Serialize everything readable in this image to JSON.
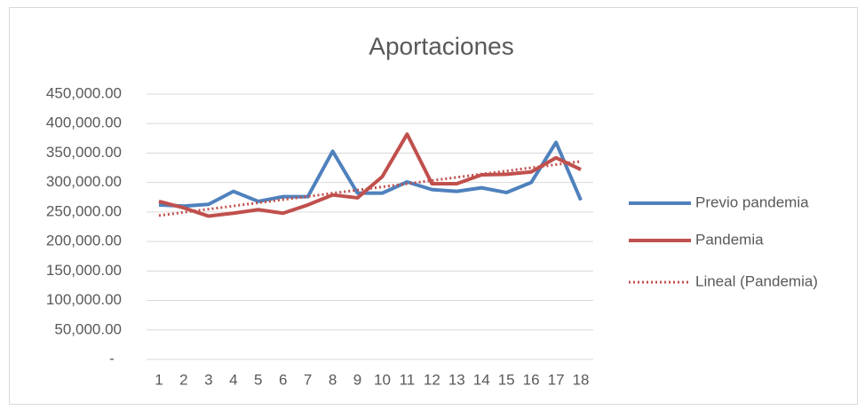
{
  "chart_data": {
    "type": "line",
    "title": "Aportaciones",
    "categories": [
      "1",
      "2",
      "3",
      "4",
      "5",
      "6",
      "7",
      "8",
      "9",
      "10",
      "11",
      "12",
      "13",
      "14",
      "15",
      "16",
      "17",
      "18"
    ],
    "series": [
      {
        "name": "Previo pandemia",
        "color": "#4f81bd",
        "line_style": "solid",
        "values": [
          262000,
          260000,
          263000,
          285000,
          268000,
          276000,
          276000,
          353000,
          282000,
          282000,
          301000,
          288000,
          285000,
          291000,
          283000,
          300000,
          368000,
          270000
        ]
      },
      {
        "name": "Pandemia",
        "color": "#c0504d",
        "line_style": "solid",
        "values": [
          268000,
          257000,
          243000,
          248000,
          254000,
          248000,
          262000,
          279000,
          274000,
          310000,
          382000,
          298000,
          298000,
          313000,
          314000,
          318000,
          342000,
          322000
        ]
      },
      {
        "name": "Lineal (Pandemia)",
        "color": "#c0504d",
        "line_style": "dotted",
        "values": [
          244000,
          249400,
          254800,
          260200,
          265600,
          271000,
          276400,
          281800,
          287200,
          292600,
          298000,
          303400,
          308800,
          314200,
          319600,
          325000,
          330400,
          335800
        ]
      }
    ],
    "ylim": [
      0,
      450000
    ],
    "yticks": [
      {
        "value": 0,
        "label": "-"
      },
      {
        "value": 50000,
        "label": "50,000.00"
      },
      {
        "value": 100000,
        "label": "100,000.00"
      },
      {
        "value": 150000,
        "label": "150,000.00"
      },
      {
        "value": 200000,
        "label": "200,000.00"
      },
      {
        "value": 250000,
        "label": "250,000.00"
      },
      {
        "value": 300000,
        "label": "300,000.00"
      },
      {
        "value": 350000,
        "label": "350,000.00"
      },
      {
        "value": 400000,
        "label": "400,000.00"
      },
      {
        "value": 450000,
        "label": "450,000.00"
      }
    ],
    "grid": true,
    "legend": "right"
  }
}
